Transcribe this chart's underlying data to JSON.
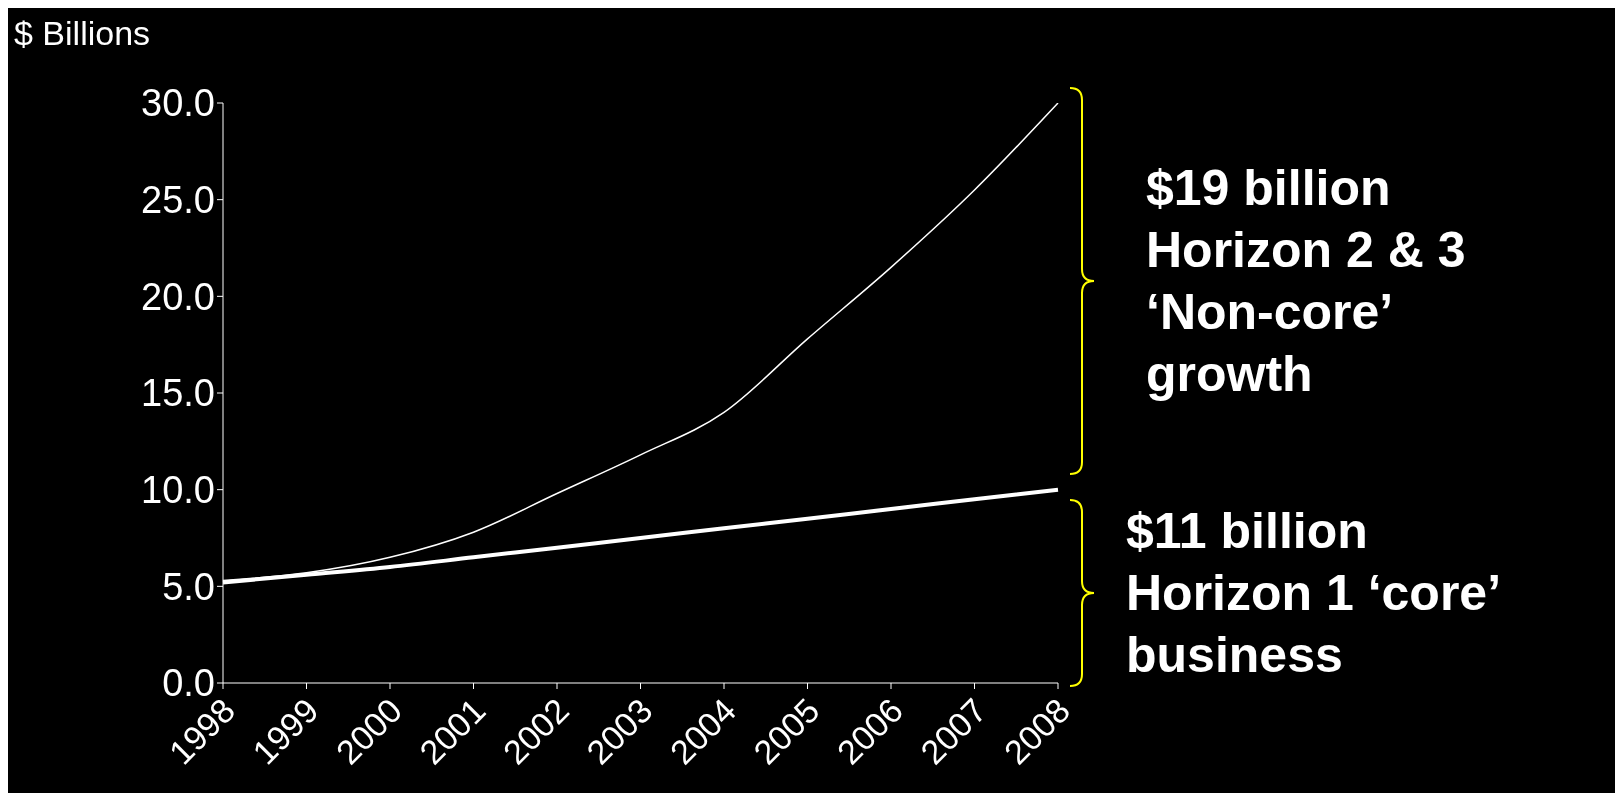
{
  "chart_data": {
    "type": "line",
    "ylabel": "$ Billions",
    "categories": [
      "1998",
      "1999",
      "2000",
      "2001",
      "2002",
      "2003",
      "2004",
      "2005",
      "2006",
      "2007",
      "2008"
    ],
    "series": [
      {
        "color": "#ffffff",
        "values": [
          5.3,
          5.7,
          6.5,
          7.8,
          9.8,
          11.8,
          14.0,
          17.8,
          21.5,
          25.5,
          30.0
        ]
      },
      {
        "color": "#ffffff",
        "values": [
          5.2,
          5.6,
          6.0,
          6.5,
          7.0,
          7.5,
          8.0,
          8.5,
          9.0,
          9.5,
          10.0
        ]
      }
    ],
    "ylim": [
      0,
      30
    ],
    "yticks": [
      {
        "value": 0,
        "label": "0.0"
      },
      {
        "value": 5,
        "label": "5.0"
      },
      {
        "value": 10,
        "label": "10.0"
      },
      {
        "value": 15,
        "label": "15.0"
      },
      {
        "value": 20,
        "label": "20.0"
      },
      {
        "value": 25,
        "label": "25.0"
      },
      {
        "value": 30,
        "label": "30.0"
      }
    ],
    "grid": false,
    "legend": false,
    "marker": "none",
    "line_style": "solid",
    "annotations": [
      "$19 billion\nHorizon 2 & 3\n‘Non-core’\ngrowth",
      "$11 billion\nHorizon 1 ‘core’\nbusiness"
    ]
  }
}
